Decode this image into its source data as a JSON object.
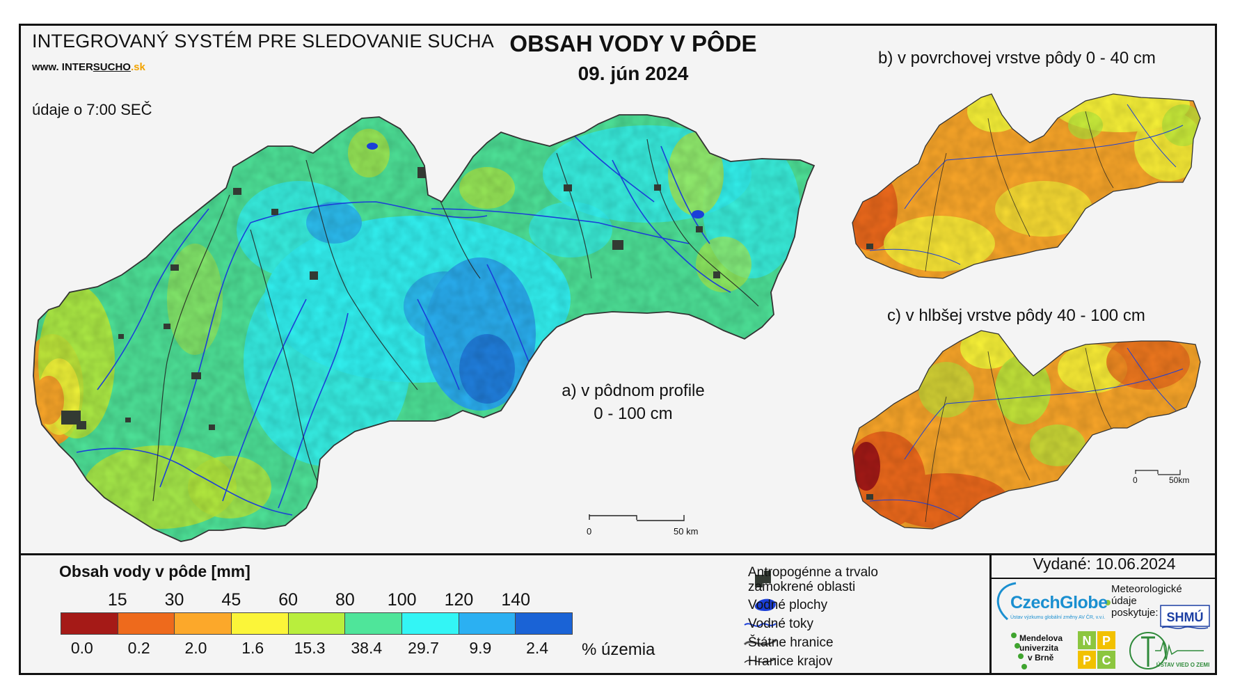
{
  "header": {
    "system_name": "INTEGROVANÝ SYSTÉM PRE SLEDOVANIE SUCHA",
    "website_prefix": "www.",
    "website_a": "INTER",
    "website_b": "SUCHO",
    "website_c": ".sk",
    "time_note": "údaje o 7:00 SEČ",
    "title": "OBSAH VODY V PÔDE",
    "date": "09. jún 2024"
  },
  "maps": {
    "main_label_line1": "a) v pôdnom profile",
    "main_label_line2": "0 - 100 cm",
    "top_label": "b) v povrchovej vrstve pôdy 0 - 40 cm",
    "bottom_label": "c) v hlbšej vrstve pôdy 40 - 100 cm",
    "main_scale": {
      "zero": "0",
      "end": "50 km"
    },
    "small_scale": {
      "zero": "0",
      "end": "50km"
    }
  },
  "legend": {
    "title": "Obsah vody v pôde  [mm]",
    "thresholds": [
      "15",
      "30",
      "45",
      "60",
      "80",
      "100",
      "120",
      "140"
    ],
    "classes": [
      {
        "color": "#a51a17",
        "pct": "0.0"
      },
      {
        "color": "#ee6a1c",
        "pct": "0.2"
      },
      {
        "color": "#fca82a",
        "pct": "2.0"
      },
      {
        "color": "#fbf539",
        "pct": "1.6"
      },
      {
        "color": "#b9ee3d",
        "pct": "15.3"
      },
      {
        "color": "#4fe59a",
        "pct": "38.4"
      },
      {
        "color": "#33f5f5",
        "pct": "29.7"
      },
      {
        "color": "#2bb0f2",
        "pct": "9.9"
      },
      {
        "color": "#1a63d6",
        "pct": "2.4"
      }
    ],
    "pct_label": "% územia"
  },
  "symbols": {
    "urban_line1": "Antropogénne a trvalo",
    "urban_line2": "zamokrené oblasti",
    "water_bodies": "Vodné plochy",
    "rivers": "Vodné toky",
    "state_border": "Štátne hranice",
    "region_border": "Hranice krajov"
  },
  "credits": {
    "issued": "Vydané: 10.06.2024",
    "czechglobe": "CzechGlobe",
    "czechglobe_sub": "Ústav výzkumu globální změny AV ČR, v.v.i.",
    "meteo_line1": "Meteorologické",
    "meteo_line2": "údaje",
    "meteo_line3": "poskytuje:",
    "shmu": "SHMÚ",
    "mendel_line1": "Mendelova",
    "mendel_line2": "univerzita",
    "mendel_line3": "v Brně",
    "nppc": [
      "N",
      "P",
      "P",
      "C"
    ],
    "uvz": "ÚSTAV VIED O ZEMI"
  },
  "colors": {
    "frame": "#111111",
    "background": "#f4f4f4",
    "river": "#1b3fd8",
    "urban": "#333a33"
  }
}
